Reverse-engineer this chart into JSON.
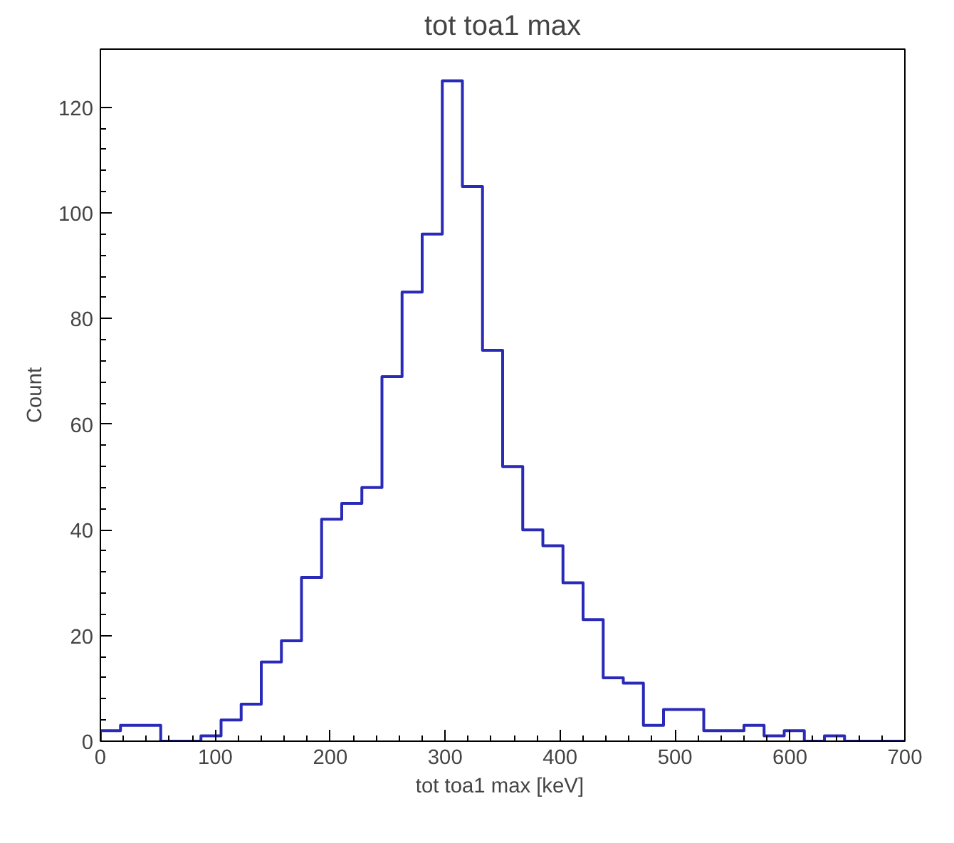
{
  "chart_data": {
    "type": "histogram",
    "title": "tot toa1 max",
    "xlabel": "tot toa1 max  [keV]",
    "ylabel": "Count",
    "bins": [
      0,
      17.5,
      35,
      52.5,
      70,
      87.5,
      105,
      122.5,
      140,
      157.5,
      175,
      192.5,
      210,
      227.5,
      245,
      262.5,
      280,
      297.5,
      315,
      332.5,
      350,
      367.5,
      385,
      402.5,
      420,
      437.5,
      455,
      472.5,
      490,
      507.5,
      525,
      542.5,
      560,
      577.5,
      595,
      612.5,
      630,
      647.5,
      665,
      682.5,
      700
    ],
    "values": [
      2,
      3,
      3,
      0,
      0,
      1,
      4,
      7,
      15,
      19,
      31,
      42,
      45,
      48,
      69,
      85,
      96,
      125,
      105,
      74,
      52,
      40,
      37,
      30,
      23,
      12,
      11,
      3,
      6,
      6,
      2,
      2,
      3,
      1,
      2,
      0,
      1,
      0,
      0,
      0
    ],
    "color": "#2a2ab8",
    "xlim": [
      0,
      700
    ],
    "ylim": [
      0,
      131
    ],
    "xticks": [
      0,
      100,
      200,
      300,
      400,
      500,
      600,
      700
    ],
    "yticks": [
      0,
      20,
      40,
      60,
      80,
      100,
      120
    ],
    "grid": false
  }
}
